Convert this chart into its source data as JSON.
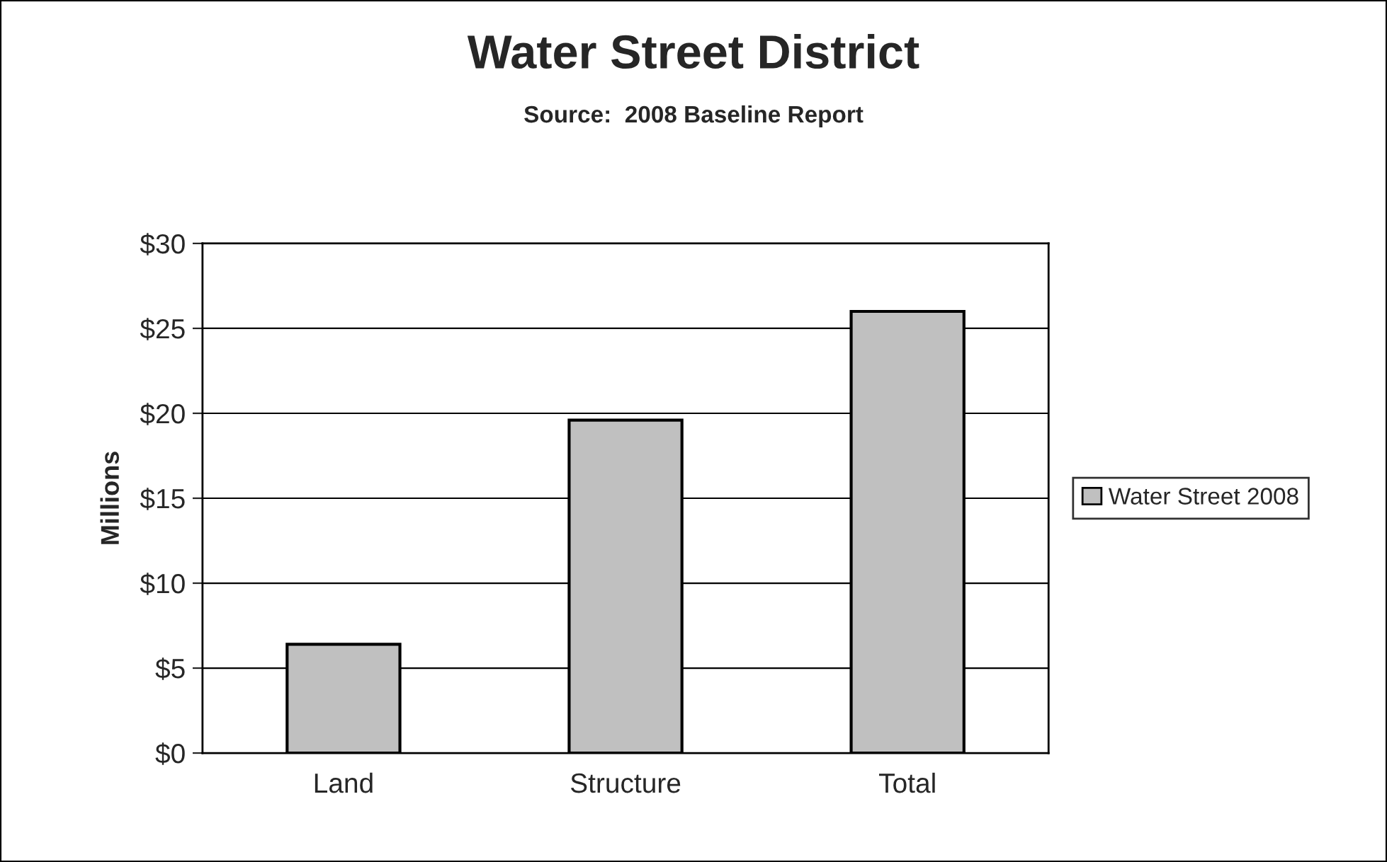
{
  "chart_data": {
    "type": "bar",
    "title": "Water Street District",
    "subtitle": "Source:  2008 Baseline Report",
    "ylabel": "Millions",
    "categories": [
      "Land",
      "Structure",
      "Total"
    ],
    "series": [
      {
        "name": "Water Street 2008",
        "color": "#c0c0c0",
        "values": [
          6.4,
          19.6,
          26.0
        ]
      }
    ],
    "ylim": [
      0,
      30
    ],
    "yticks": [
      {
        "value": 0,
        "label": "$0"
      },
      {
        "value": 5,
        "label": "$5"
      },
      {
        "value": 10,
        "label": "$10"
      },
      {
        "value": 15,
        "label": "$15"
      },
      {
        "value": 20,
        "label": "$20"
      },
      {
        "value": 25,
        "label": "$25"
      },
      {
        "value": 30,
        "label": "$30"
      }
    ],
    "grid": "y",
    "legend": "right"
  }
}
